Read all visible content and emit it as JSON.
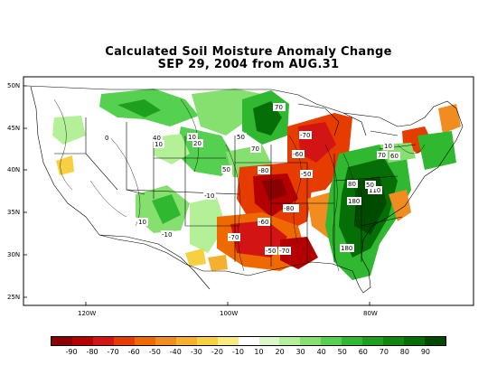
{
  "title": {
    "line1": "Calculated Soil Moisture Anomaly Change",
    "line2": "SEP 29, 2004 from AUG.31"
  },
  "axes": {
    "lat_ticks": [
      "50N",
      "45N",
      "40N",
      "35N",
      "30N",
      "25N"
    ],
    "lon_ticks": [
      "120W",
      "100W",
      "80W"
    ]
  },
  "colorbar": {
    "colors": [
      "#8b0000",
      "#b40000",
      "#d21414",
      "#e63c00",
      "#ee6a00",
      "#f08c20",
      "#f5b030",
      "#f6d040",
      "#f8ec80",
      "#ffffff",
      "#d8f8c8",
      "#b4f098",
      "#86e070",
      "#56d050",
      "#30b830",
      "#1ea01e",
      "#108810",
      "#066e06",
      "#004a00"
    ],
    "labels": [
      "-90",
      "-80",
      "-70",
      "-60",
      "-50",
      "-40",
      "-30",
      "-20",
      "-10",
      "10",
      "20",
      "30",
      "40",
      "50",
      "60",
      "70",
      "80",
      "90"
    ]
  },
  "contour_labels": [
    {
      "text": "70"
    },
    {
      "text": "-70"
    },
    {
      "text": "50"
    },
    {
      "text": "70"
    },
    {
      "text": "-60"
    },
    {
      "text": "-80"
    },
    {
      "text": "-50"
    },
    {
      "text": "-80"
    },
    {
      "text": "-60"
    },
    {
      "text": "-70"
    },
    {
      "text": "-50"
    },
    {
      "text": "-70"
    },
    {
      "text": "40"
    },
    {
      "text": "10"
    },
    {
      "text": "20"
    },
    {
      "text": "50"
    },
    {
      "text": "10"
    },
    {
      "text": "-10"
    },
    {
      "text": "180"
    },
    {
      "text": "110"
    },
    {
      "text": "180"
    },
    {
      "text": "80"
    },
    {
      "text": "70"
    },
    {
      "text": "60"
    },
    {
      "text": "10"
    },
    {
      "text": "50"
    },
    {
      "text": "-10"
    },
    {
      "text": "0"
    },
    {
      "text": "10"
    }
  ]
}
